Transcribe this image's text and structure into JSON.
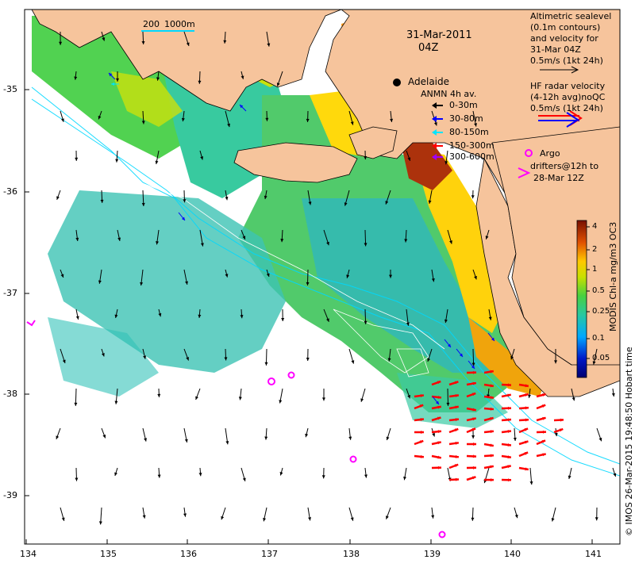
{
  "header": {
    "date": "31-Mar-2011",
    "time": "04Z"
  },
  "scale_bar": {
    "label_left": "200",
    "label_right": "1000m"
  },
  "city": {
    "name": "Adelaide"
  },
  "altimetry_legend": {
    "lines": [
      "Altimetric sealevel",
      "(0.1m contours)",
      "and velocity for",
      "31-Mar 04Z",
      "0.5m/s (1kt 24h)"
    ]
  },
  "hf_radar_legend": {
    "lines": [
      "HF radar velocity",
      "(4-12h avg)noQC",
      "0.5m/s (1kt 24h)"
    ]
  },
  "anmn_legend": {
    "title": "ANMN 4h av.",
    "items": [
      {
        "label": "0-30m",
        "color": "#000000"
      },
      {
        "label": "30-80m",
        "color": "#0000ff"
      },
      {
        "label": "80-150m",
        "color": "#00e5ff"
      },
      {
        "label": "150-300m",
        "color": "#ff0000"
      },
      {
        "label": "300-600m",
        "color": "#a000ff"
      }
    ]
  },
  "argo_legend": {
    "lines": [
      "Argo",
      "drifters@12h to",
      "28-Mar 12Z"
    ],
    "color": "#ff00ff"
  },
  "colorbar": {
    "title": "MODIS Chl-a mg/m3 OC3",
    "ticks": [
      "4",
      "2",
      "1",
      "0.5",
      "0.25",
      "0.1",
      "0.05"
    ]
  },
  "credit": "© IMOS 26-Mar-2015 19:48:50 Hobart time",
  "axes": {
    "x_ticks": [
      "134",
      "135",
      "136",
      "137",
      "138",
      "139",
      "140",
      "141"
    ],
    "y_ticks": [
      "-35",
      "-36",
      "-37",
      "-38",
      "-39"
    ]
  },
  "colors": {
    "land": "#f6c49c",
    "ocean": "#ffffff"
  }
}
